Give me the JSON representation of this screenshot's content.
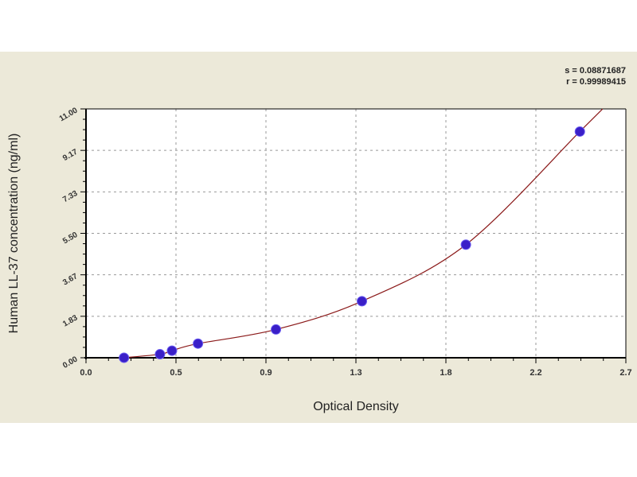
{
  "chart_data": {
    "type": "scatter",
    "title": "",
    "xlabel": "Optical Density",
    "ylabel": "Human LL-37 concentration (ng/ml)",
    "xlim": [
      0,
      2.7
    ],
    "ylim": [
      0,
      11
    ],
    "xticks": [
      "0.0",
      "0.5",
      "0.9",
      "1.3",
      "1.8",
      "2.2",
      "2.7"
    ],
    "yticks": [
      "0.00",
      "1.83",
      "3.67",
      "5.50",
      "7.33",
      "9.17",
      "11.00"
    ],
    "grid": true,
    "points": [
      {
        "x": 0.19,
        "y": 0
      },
      {
        "x": 0.37,
        "y": 0.156
      },
      {
        "x": 0.43,
        "y": 0.313
      },
      {
        "x": 0.56,
        "y": 0.625
      },
      {
        "x": 0.95,
        "y": 1.25
      },
      {
        "x": 1.38,
        "y": 2.5
      },
      {
        "x": 1.9,
        "y": 5
      },
      {
        "x": 2.47,
        "y": 10
      }
    ],
    "fit_line": true,
    "stats": {
      "s": "s = 0.08871687",
      "r": "r = 0.99989415"
    },
    "colors": {
      "points": "#3a1fc8",
      "curve": "#8b1a1a",
      "background": "#ece9d9"
    }
  }
}
